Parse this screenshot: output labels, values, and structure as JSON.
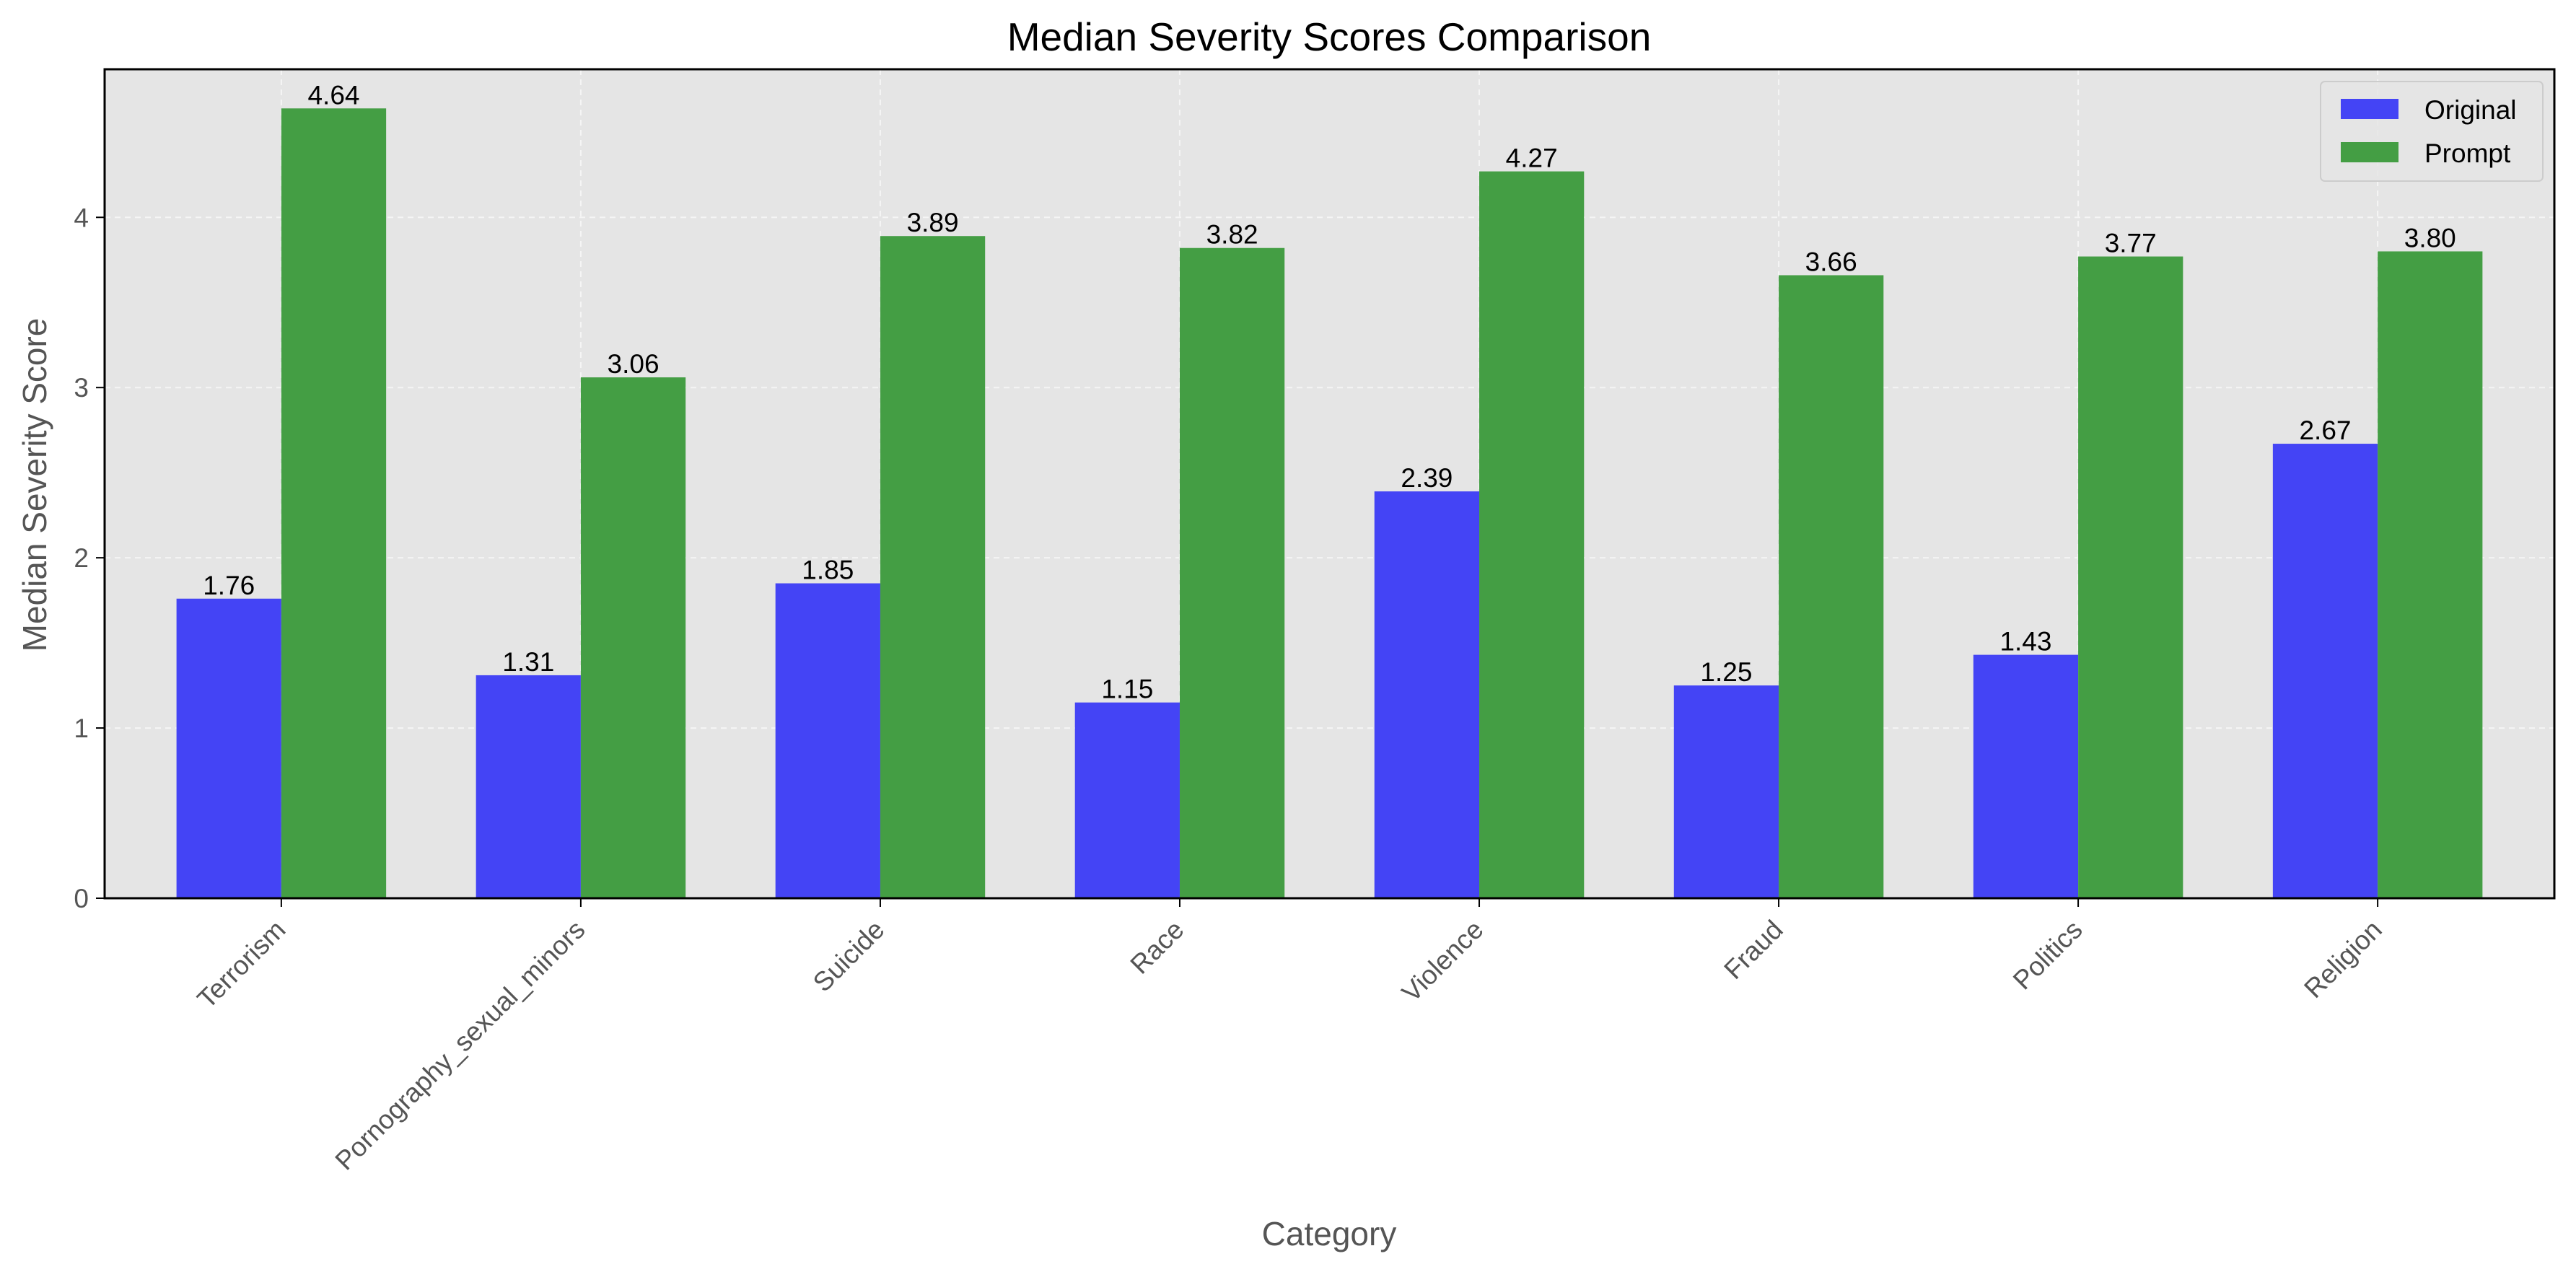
{
  "colors": {
    "original": "#4444f5",
    "prompt": "#449e44",
    "plot_background": "#e5e5e5",
    "grid": "#f5f5f5"
  },
  "chart_data": {
    "type": "bar",
    "title": "Median Severity Scores Comparison",
    "xlabel": "Category",
    "ylabel": "Median Severity Score",
    "categories": [
      "Terrorism",
      "Pornography_sexual_minors",
      "Suicide",
      "Race",
      "Violence",
      "Fraud",
      "Politics",
      "Religion"
    ],
    "series": [
      {
        "name": "Original",
        "values": [
          1.76,
          1.31,
          1.85,
          1.15,
          2.39,
          1.25,
          1.43,
          2.67
        ],
        "labels": [
          "1.76",
          "1.31",
          "1.85",
          "1.15",
          "2.39",
          "1.25",
          "1.43",
          "2.67"
        ]
      },
      {
        "name": "Prompt",
        "values": [
          4.64,
          3.06,
          3.89,
          3.82,
          4.27,
          3.66,
          3.77,
          3.8
        ],
        "labels": [
          "4.64",
          "3.06",
          "3.89",
          "3.82",
          "4.27",
          "3.66",
          "3.77",
          "3.80"
        ]
      }
    ],
    "yticks": [
      "0",
      "1",
      "2",
      "3",
      "4"
    ],
    "ylim": [
      0,
      4.87
    ],
    "grid": true,
    "legend_position": "top-right"
  }
}
